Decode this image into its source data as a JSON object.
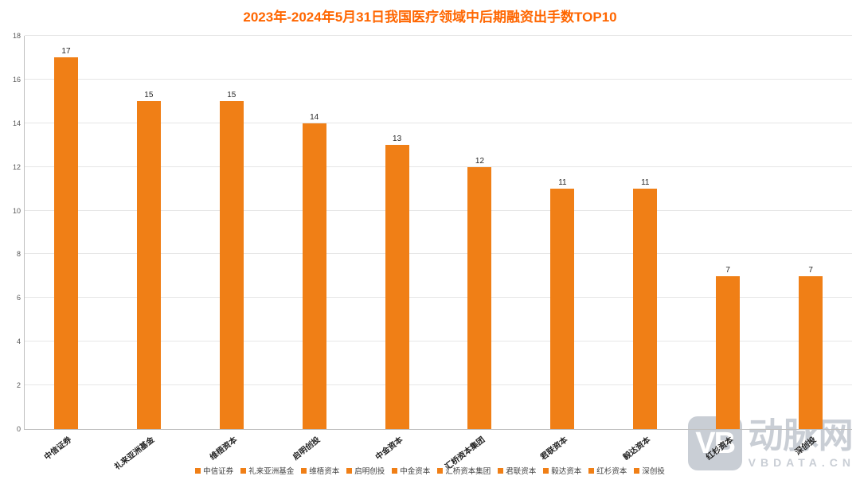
{
  "title": "2023年-2024年5月31日我国医疗领域中后期融资出手数TOP10",
  "colors": {
    "title": "#FF6600",
    "bar": "#F07F16",
    "gridline": "#E6E6E6",
    "axis": "#BFBFBF",
    "watermark": "#C9CED5"
  },
  "chart_data": {
    "type": "bar",
    "title": "2023年-2024年5月31日我国医疗领域中后期融资出手数TOP10",
    "categories": [
      "中信证券",
      "礼来亚洲基金",
      "维梧资本",
      "启明创投",
      "中金资本",
      "汇桥资本集团",
      "君联资本",
      "毅达资本",
      "红杉资本",
      "深创投"
    ],
    "values": [
      17,
      15,
      15,
      14,
      13,
      12,
      11,
      11,
      7,
      7
    ],
    "xlabel": "",
    "ylabel": "",
    "ylim": [
      0,
      18
    ],
    "ytick_step": 2,
    "grid": true,
    "legend_position": "bottom",
    "bar_color": "#F07F16"
  },
  "legend": {
    "items": [
      "中信证券",
      "礼来亚洲基金",
      "维梧资本",
      "启明创投",
      "中金资本",
      "汇桥资本集团",
      "君联资本",
      "毅达资本",
      "红杉资本",
      "深创投"
    ]
  },
  "watermark": {
    "logo": "VB",
    "name": "动脉网",
    "domain": "VBDATA.CN"
  }
}
